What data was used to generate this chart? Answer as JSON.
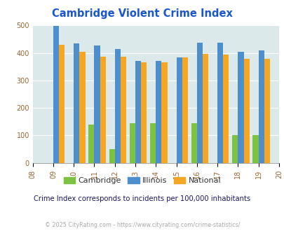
{
  "title": "Cambridge Violent Crime Index",
  "years": [
    2009,
    2010,
    2011,
    2012,
    2013,
    2014,
    2015,
    2016,
    2017,
    2018,
    2019
  ],
  "cambridge": [
    0,
    0,
    140,
    50,
    145,
    145,
    0,
    145,
    0,
    100,
    100
  ],
  "illinois": [
    498,
    435,
    428,
    413,
    372,
    370,
    383,
    438,
    438,
    405,
    408
  ],
  "national": [
    430,
    405,
    387,
    387,
    367,
    366,
    383,
    397,
    395,
    379,
    379
  ],
  "cambridge_color": "#7dc240",
  "illinois_color": "#4d8fcc",
  "national_color": "#f5a623",
  "bg_color": "#dce9ea",
  "title_color": "#1a56cc",
  "xlim": [
    2008,
    2020
  ],
  "ylim": [
    0,
    500
  ],
  "yticks": [
    0,
    100,
    200,
    300,
    400,
    500
  ],
  "xticks": [
    2008,
    2009,
    2010,
    2011,
    2012,
    2013,
    2014,
    2015,
    2016,
    2017,
    2018,
    2019,
    2020
  ],
  "bar_width": 0.28,
  "subtitle": "Crime Index corresponds to incidents per 100,000 inhabitants",
  "subtitle_color": "#1a1a66",
  "copyright": "© 2025 CityRating.com - https://www.cityrating.com/crime-statistics/",
  "copyright_color": "#aaaaaa",
  "legend_labels": [
    "Cambridge",
    "Illinois",
    "National"
  ]
}
